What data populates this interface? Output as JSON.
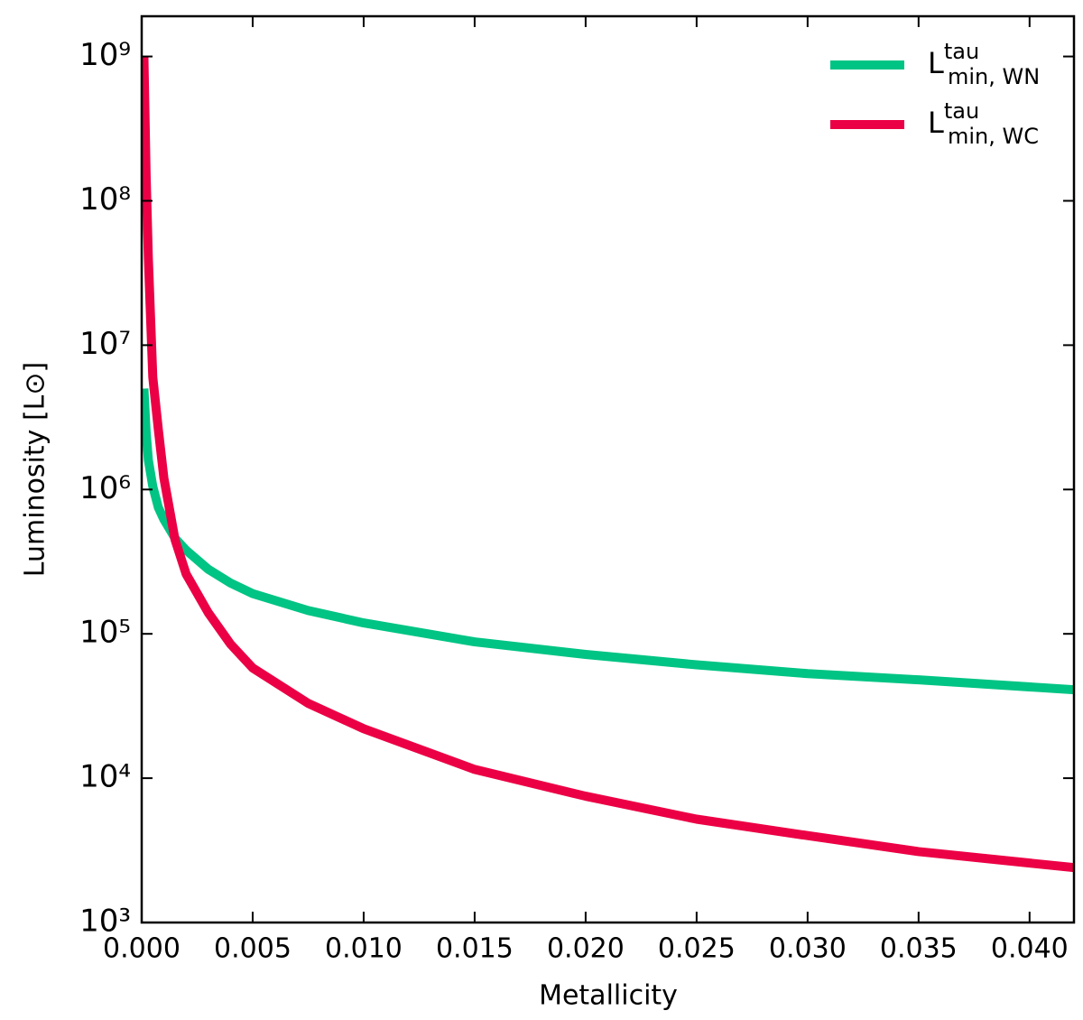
{
  "chart_data": {
    "type": "line",
    "xlabel": "Metallicity",
    "ylabel": "Luminosity [L⊙]",
    "x": [
      0.0001,
      0.0002,
      0.0003,
      0.0005,
      0.00075,
      0.001,
      0.0015,
      0.002,
      0.003,
      0.004,
      0.005,
      0.0075,
      0.01,
      0.015,
      0.02,
      0.025,
      0.03,
      0.035,
      0.042
    ],
    "series": [
      {
        "name": "L^tau_min, WN",
        "color": "#00c484",
        "values": [
          5000000,
          2500000,
          1600000,
          1050000,
          750000,
          620000,
          460000,
          380000,
          280000,
          225000,
          190000,
          145000,
          119000,
          88000,
          72000,
          61000,
          53000,
          48000,
          41000
        ]
      },
      {
        "name": "L^tau_min, WC",
        "color": "#ec0045",
        "values": [
          1000000000,
          150000000,
          40000000,
          6000000,
          2600000,
          1200000,
          450000,
          260000,
          140000,
          85000,
          58000,
          33000,
          22000,
          11500,
          7500,
          5200,
          4000,
          3100,
          2400
        ]
      }
    ],
    "xlim": [
      0,
      0.042
    ],
    "xticks": [
      {
        "value": 0,
        "label": "0.000"
      },
      0.005,
      {
        "value": 0.01,
        "label": "0.010"
      },
      0.015,
      {
        "value": 0.02,
        "label": "0.020"
      },
      0.025,
      {
        "value": 0.03,
        "label": "0.030"
      },
      0.035,
      {
        "value": 0.04,
        "label": "0.040"
      }
    ],
    "ylim": [
      1000,
      1900000000
    ],
    "log_y": true,
    "yticks": [
      {
        "value": 1000,
        "label": "10³"
      },
      {
        "value": 10000,
        "label": "10⁴"
      },
      {
        "value": 100000,
        "label": "10⁵"
      },
      {
        "value": 1000000,
        "label": "10⁶"
      },
      {
        "value": 10000000,
        "label": "10⁷"
      },
      {
        "value": 100000000,
        "label": "10⁸"
      },
      {
        "value": 1000000000,
        "label": "10⁹"
      }
    ],
    "legend": "upper right"
  }
}
